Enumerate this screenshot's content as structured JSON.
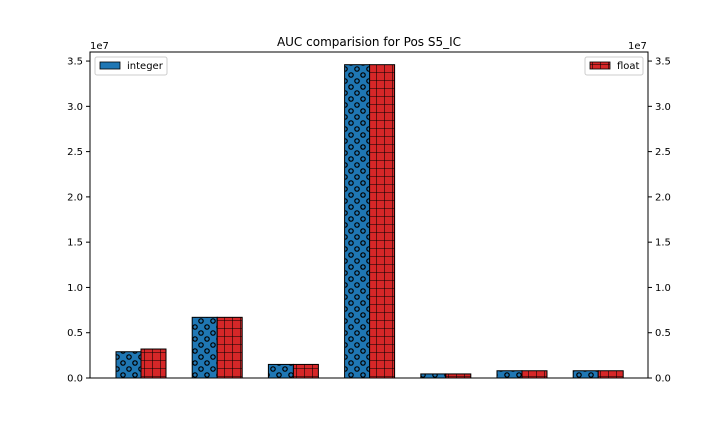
{
  "chart_data": {
    "type": "bar",
    "title": "AUC comparision for Pos S5_IC",
    "categories": [
      "",
      "",
      "",
      "",
      "",
      "",
      ""
    ],
    "series": [
      {
        "name": "integer",
        "values": [
          2900000,
          6700000,
          1500000,
          34600000,
          450000,
          800000,
          800000
        ],
        "color": "#1f77b4",
        "hatch": "circles",
        "axis": "left"
      },
      {
        "name": "float",
        "values": [
          3200000,
          6700000,
          1500000,
          34600000,
          450000,
          800000,
          800000
        ],
        "color": "#d62728",
        "hatch": "grid",
        "axis": "right"
      }
    ],
    "ylim": [
      0,
      36000000
    ],
    "yticks": [
      0,
      5000000,
      10000000,
      15000000,
      20000000,
      25000000,
      30000000,
      35000000
    ],
    "ytick_labels": [
      "0.0",
      "0.5",
      "1.0",
      "1.5",
      "2.0",
      "2.5",
      "3.0",
      "3.5"
    ],
    "left_offset_label": "1e7",
    "right_offset_label": "1e7",
    "xlabel": "",
    "ylabel": "",
    "grid": false,
    "legends": [
      {
        "series": 0,
        "placement": "upper-left"
      },
      {
        "series": 1,
        "placement": "upper-right"
      }
    ]
  }
}
